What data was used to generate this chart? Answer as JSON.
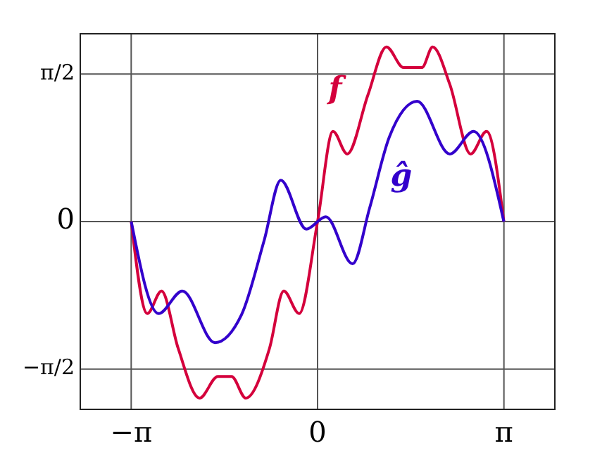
{
  "chart_data": {
    "type": "line",
    "xlim": [
      -4,
      4
    ],
    "ylim": [
      -2,
      2
    ],
    "xticks": [
      {
        "value": -3.14159,
        "label": "−π"
      },
      0,
      {
        "value": 3.14159,
        "label": "π"
      }
    ],
    "yticks": [
      {
        "value": -1.5708,
        "label": "−π/2"
      },
      0,
      {
        "value": 1.5708,
        "label": "π/2"
      }
    ],
    "grid": true,
    "series": [
      {
        "name": "f",
        "color": "#d4003c",
        "x": [
          -3.14,
          -2.87,
          -2.63,
          -2.35,
          -1.99,
          -1.68,
          -1.45,
          -1.21,
          -0.81,
          -0.57,
          -0.31,
          0,
          0.26,
          0.5,
          0.85,
          1.16,
          1.45,
          1.76,
          1.94,
          2.23,
          2.58,
          2.85,
          3.14
        ],
        "values": [
          0,
          -0.98,
          -0.74,
          -1.35,
          -1.88,
          -1.65,
          -1.65,
          -1.88,
          -1.35,
          -0.74,
          -0.98,
          0,
          0.96,
          0.72,
          1.35,
          1.86,
          1.64,
          1.64,
          1.86,
          1.46,
          0.72,
          0.96,
          0
        ]
      },
      {
        "name": "ĝ",
        "color": "#3300cc",
        "x": [
          -3.14,
          -2.68,
          -2.28,
          -1.73,
          -1.28,
          -0.9,
          -0.62,
          -0.19,
          0.14,
          0.59,
          0.88,
          1.21,
          1.68,
          2.23,
          2.63,
          3.14
        ],
        "values": [
          0,
          -0.98,
          -0.74,
          -1.29,
          -0.99,
          -0.2,
          0.44,
          -0.08,
          0.05,
          -0.45,
          0.15,
          0.9,
          1.28,
          0.72,
          0.96,
          0
        ]
      }
    ]
  }
}
